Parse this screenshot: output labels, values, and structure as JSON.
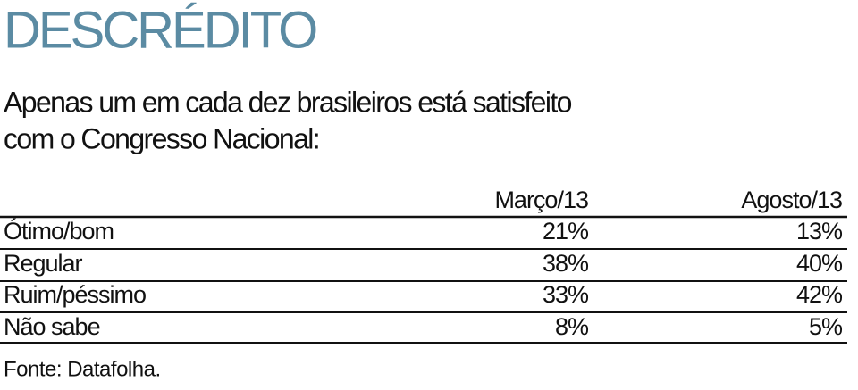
{
  "header": {
    "title": "DESCRÉDITO",
    "subtitle": [
      "Apenas um em cada dez brasileiros está satisfeito",
      "com o Congresso Nacional:"
    ]
  },
  "table": {
    "columns": [
      "Março/13",
      "Agosto/13"
    ],
    "rows": [
      [
        "Ótimo/bom",
        "21%",
        "13%"
      ],
      [
        "Regular",
        "38%",
        "40%"
      ],
      [
        "Ruim/péssimo",
        "33%",
        "42%"
      ],
      [
        "Não sabe",
        "8%",
        "5%"
      ]
    ]
  },
  "source": "Fonte: Datafolha."
}
